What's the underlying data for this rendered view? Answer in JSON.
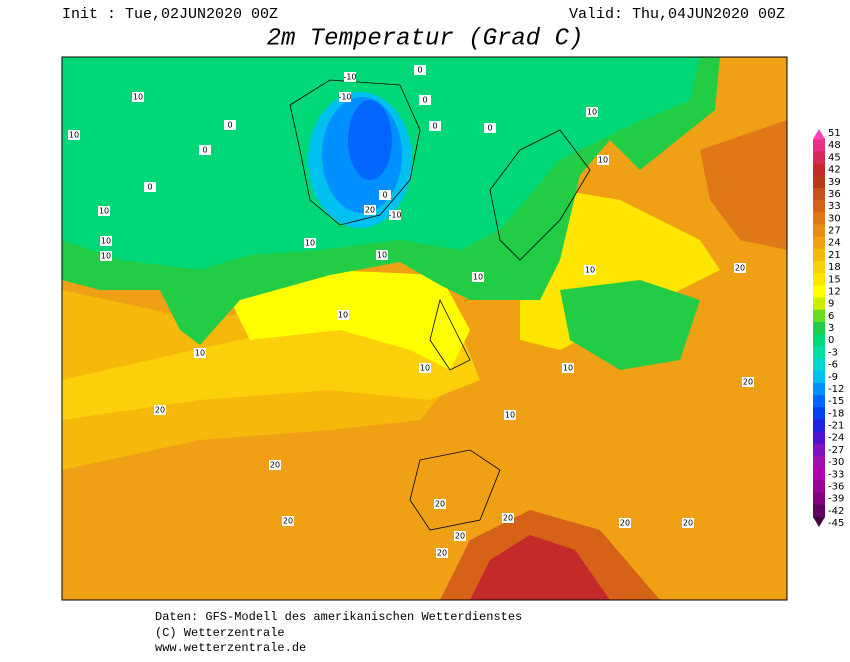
{
  "header": {
    "init": "Init : Tue,02JUN2020 00Z",
    "valid": "Valid: Thu,04JUN2020 00Z",
    "title": "2m Temperatur (Grad C)"
  },
  "colorbar": {
    "labels": [
      51,
      48,
      45,
      42,
      39,
      36,
      33,
      30,
      27,
      24,
      21,
      18,
      15,
      12,
      9,
      6,
      3,
      0,
      -3,
      -6,
      -9,
      -12,
      -15,
      -18,
      -21,
      -24,
      -27,
      -30,
      -33,
      -36,
      -39,
      -42,
      -45
    ],
    "colors": [
      "#ff3fbf",
      "#e8308a",
      "#d62a5a",
      "#c42a2a",
      "#b83a1a",
      "#c8501a",
      "#d66218",
      "#e07818",
      "#e88a18",
      "#f0a014",
      "#f7b80c",
      "#fbd00a",
      "#ffe600",
      "#ffff00",
      "#c8f000",
      "#66dd22",
      "#22cc44",
      "#00d878",
      "#00e0a0",
      "#00d8d0",
      "#00c0f0",
      "#0090ff",
      "#0066ff",
      "#0044ee",
      "#2020e0",
      "#5010d0",
      "#8010c0",
      "#a010b0",
      "#b000b0",
      "#9a0098",
      "#800080",
      "#600060",
      "#400040"
    ]
  },
  "contour_labels": [
    10,
    10,
    0,
    0,
    0,
    -10,
    -10,
    0,
    0,
    0,
    0,
    10,
    10,
    10,
    10,
    10,
    10,
    10,
    10,
    10,
    10,
    10,
    10,
    20,
    20,
    20,
    20,
    20,
    20,
    20,
    20,
    20,
    20,
    20,
    -10,
    0,
    10,
    10,
    20
  ],
  "footer": {
    "line1": "Daten: GFS-Modell des amerikanischen Wetterdienstes",
    "line2": "(C) Wetterzentrale",
    "line3": "www.wetterzentrale.de"
  }
}
